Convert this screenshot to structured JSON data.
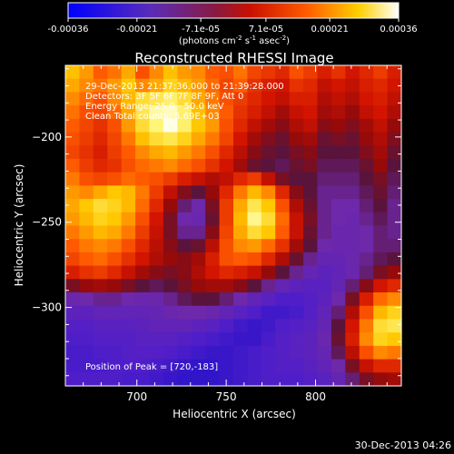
{
  "colorbar": {
    "ticks": [
      "-0.00036",
      "-0.00021",
      "-7.1e-05",
      "7.1e-05",
      "0.00021",
      "0.00036"
    ],
    "min": -0.00036,
    "max": 0.00036,
    "units_line": "(photons cm",
    "units_exp1": "-2",
    "units_mid": " s",
    "units_exp2": "-1",
    "units_mid2": " asec",
    "units_exp3": "-2",
    "units_close": ")"
  },
  "info": {
    "line1": "29-Dec-2013 21:37:36.000 to 21:39:28.000",
    "line2": "Detectors: 3F 5F 6F 7F 8F 9F, Att 0",
    "line3": "Energy Range: 25.0 - 50.0 keV",
    "line4": "Clean     Total counts: 5.69E+03",
    "peak": "Position of Peak = [720,-183]"
  },
  "timestamp": "30-Dec-2013 04:26",
  "colors": {
    "background": "#000000",
    "text": "#ffffff"
  },
  "chart_data": {
    "type": "heatmap",
    "title": "Reconstructed RHESSI Image",
    "xlabel": "Heliocentric X (arcsec)",
    "ylabel": "Heliocentric Y (arcsec)",
    "xlim": [
      660,
      848
    ],
    "ylim": [
      -346,
      -158
    ],
    "xticks": [
      700,
      750,
      800
    ],
    "yticks": [
      -200,
      -250,
      -300
    ],
    "peak": [
      720,
      -183
    ],
    "colormap": "blue-purple-red-yellow-white",
    "grid": false,
    "cols": 24,
    "rows": 24,
    "values": [
      [
        0.85,
        0.8,
        0.72,
        0.75,
        0.82,
        0.7,
        0.78,
        0.85,
        0.8,
        0.78,
        0.72,
        0.7,
        0.75,
        0.68,
        0.65,
        0.62,
        0.7,
        0.66,
        0.6,
        0.64,
        0.58,
        0.62,
        0.66,
        0.6
      ],
      [
        0.82,
        0.78,
        0.75,
        0.8,
        0.86,
        0.78,
        0.82,
        0.88,
        0.84,
        0.8,
        0.74,
        0.68,
        0.72,
        0.64,
        0.6,
        0.58,
        0.64,
        0.62,
        0.55,
        0.58,
        0.55,
        0.6,
        0.62,
        0.58
      ],
      [
        0.78,
        0.74,
        0.7,
        0.78,
        0.84,
        0.9,
        0.92,
        0.94,
        0.9,
        0.82,
        0.76,
        0.7,
        0.66,
        0.62,
        0.58,
        0.55,
        0.6,
        0.6,
        0.52,
        0.55,
        0.52,
        0.58,
        0.6,
        0.55
      ],
      [
        0.75,
        0.7,
        0.68,
        0.74,
        0.82,
        0.92,
        0.97,
        0.98,
        0.94,
        0.85,
        0.78,
        0.72,
        0.64,
        0.6,
        0.55,
        0.5,
        0.56,
        0.58,
        0.5,
        0.52,
        0.48,
        0.55,
        0.58,
        0.52
      ],
      [
        0.72,
        0.68,
        0.64,
        0.7,
        0.8,
        0.9,
        0.95,
        1.0,
        0.94,
        0.86,
        0.8,
        0.7,
        0.62,
        0.55,
        0.5,
        0.46,
        0.52,
        0.55,
        0.46,
        0.48,
        0.45,
        0.5,
        0.55,
        0.48
      ],
      [
        0.7,
        0.66,
        0.62,
        0.68,
        0.76,
        0.85,
        0.9,
        0.92,
        0.88,
        0.82,
        0.76,
        0.68,
        0.58,
        0.5,
        0.45,
        0.42,
        0.48,
        0.5,
        0.42,
        0.44,
        0.42,
        0.48,
        0.52,
        0.45
      ],
      [
        0.68,
        0.64,
        0.6,
        0.66,
        0.72,
        0.78,
        0.82,
        0.84,
        0.8,
        0.76,
        0.7,
        0.62,
        0.54,
        0.46,
        0.42,
        0.4,
        0.44,
        0.46,
        0.4,
        0.4,
        0.4,
        0.45,
        0.5,
        0.42
      ],
      [
        0.72,
        0.66,
        0.62,
        0.64,
        0.7,
        0.74,
        0.76,
        0.78,
        0.74,
        0.7,
        0.64,
        0.58,
        0.5,
        0.42,
        0.4,
        0.38,
        0.42,
        0.44,
        0.38,
        0.38,
        0.38,
        0.42,
        0.48,
        0.4
      ],
      [
        0.76,
        0.7,
        0.68,
        0.7,
        0.74,
        0.72,
        0.7,
        0.66,
        0.6,
        0.56,
        0.52,
        0.55,
        0.62,
        0.66,
        0.55,
        0.44,
        0.4,
        0.4,
        0.36,
        0.36,
        0.36,
        0.4,
        0.44,
        0.38
      ],
      [
        0.8,
        0.78,
        0.82,
        0.86,
        0.84,
        0.76,
        0.66,
        0.55,
        0.45,
        0.4,
        0.48,
        0.62,
        0.76,
        0.84,
        0.78,
        0.62,
        0.46,
        0.4,
        0.34,
        0.34,
        0.34,
        0.38,
        0.42,
        0.36
      ],
      [
        0.82,
        0.86,
        0.9,
        0.88,
        0.84,
        0.74,
        0.62,
        0.48,
        0.36,
        0.32,
        0.44,
        0.66,
        0.82,
        0.92,
        0.86,
        0.7,
        0.52,
        0.42,
        0.34,
        0.32,
        0.32,
        0.36,
        0.4,
        0.34
      ],
      [
        0.8,
        0.84,
        0.88,
        0.86,
        0.8,
        0.7,
        0.58,
        0.44,
        0.32,
        0.3,
        0.42,
        0.66,
        0.84,
        0.96,
        0.9,
        0.74,
        0.56,
        0.44,
        0.34,
        0.32,
        0.3,
        0.34,
        0.38,
        0.34
      ],
      [
        0.76,
        0.8,
        0.84,
        0.82,
        0.76,
        0.66,
        0.56,
        0.44,
        0.34,
        0.34,
        0.46,
        0.68,
        0.82,
        0.9,
        0.86,
        0.72,
        0.56,
        0.42,
        0.34,
        0.3,
        0.3,
        0.32,
        0.36,
        0.34
      ],
      [
        0.72,
        0.76,
        0.78,
        0.76,
        0.7,
        0.62,
        0.54,
        0.46,
        0.4,
        0.42,
        0.54,
        0.7,
        0.78,
        0.8,
        0.74,
        0.64,
        0.5,
        0.4,
        0.32,
        0.3,
        0.3,
        0.32,
        0.36,
        0.36
      ],
      [
        0.68,
        0.72,
        0.74,
        0.7,
        0.64,
        0.58,
        0.52,
        0.48,
        0.46,
        0.5,
        0.6,
        0.7,
        0.72,
        0.7,
        0.62,
        0.52,
        0.42,
        0.34,
        0.28,
        0.28,
        0.3,
        0.34,
        0.38,
        0.4
      ],
      [
        0.6,
        0.64,
        0.66,
        0.62,
        0.56,
        0.5,
        0.46,
        0.44,
        0.46,
        0.52,
        0.58,
        0.62,
        0.6,
        0.56,
        0.48,
        0.4,
        0.34,
        0.28,
        0.24,
        0.26,
        0.3,
        0.36,
        0.44,
        0.48
      ],
      [
        0.44,
        0.48,
        0.5,
        0.48,
        0.44,
        0.4,
        0.38,
        0.4,
        0.44,
        0.48,
        0.5,
        0.5,
        0.46,
        0.4,
        0.34,
        0.28,
        0.24,
        0.22,
        0.22,
        0.28,
        0.36,
        0.46,
        0.58,
        0.62
      ],
      [
        0.3,
        0.32,
        0.34,
        0.34,
        0.32,
        0.3,
        0.3,
        0.34,
        0.38,
        0.4,
        0.4,
        0.36,
        0.32,
        0.26,
        0.22,
        0.18,
        0.18,
        0.2,
        0.24,
        0.32,
        0.44,
        0.6,
        0.74,
        0.78
      ],
      [
        0.24,
        0.24,
        0.26,
        0.26,
        0.26,
        0.26,
        0.28,
        0.3,
        0.32,
        0.32,
        0.3,
        0.26,
        0.22,
        0.18,
        0.14,
        0.14,
        0.16,
        0.2,
        0.26,
        0.36,
        0.52,
        0.7,
        0.84,
        0.88
      ],
      [
        0.2,
        0.2,
        0.22,
        0.22,
        0.22,
        0.24,
        0.26,
        0.26,
        0.26,
        0.24,
        0.22,
        0.18,
        0.14,
        0.12,
        0.14,
        0.18,
        0.2,
        0.22,
        0.28,
        0.4,
        0.58,
        0.76,
        0.9,
        0.92
      ],
      [
        0.18,
        0.18,
        0.2,
        0.2,
        0.2,
        0.22,
        0.22,
        0.22,
        0.2,
        0.18,
        0.16,
        0.14,
        0.12,
        0.12,
        0.16,
        0.2,
        0.22,
        0.24,
        0.3,
        0.42,
        0.6,
        0.78,
        0.88,
        0.86
      ],
      [
        0.16,
        0.16,
        0.18,
        0.18,
        0.2,
        0.2,
        0.2,
        0.18,
        0.16,
        0.14,
        0.12,
        0.12,
        0.14,
        0.16,
        0.18,
        0.2,
        0.22,
        0.24,
        0.28,
        0.38,
        0.54,
        0.7,
        0.78,
        0.76
      ],
      [
        0.16,
        0.16,
        0.16,
        0.18,
        0.18,
        0.18,
        0.16,
        0.14,
        0.12,
        0.1,
        0.1,
        0.12,
        0.14,
        0.16,
        0.18,
        0.2,
        0.2,
        0.22,
        0.26,
        0.32,
        0.44,
        0.56,
        0.62,
        0.62
      ],
      [
        0.18,
        0.18,
        0.18,
        0.18,
        0.16,
        0.16,
        0.14,
        0.12,
        0.1,
        0.1,
        0.1,
        0.12,
        0.14,
        0.16,
        0.18,
        0.18,
        0.18,
        0.2,
        0.22,
        0.28,
        0.36,
        0.44,
        0.48,
        0.5
      ]
    ]
  }
}
